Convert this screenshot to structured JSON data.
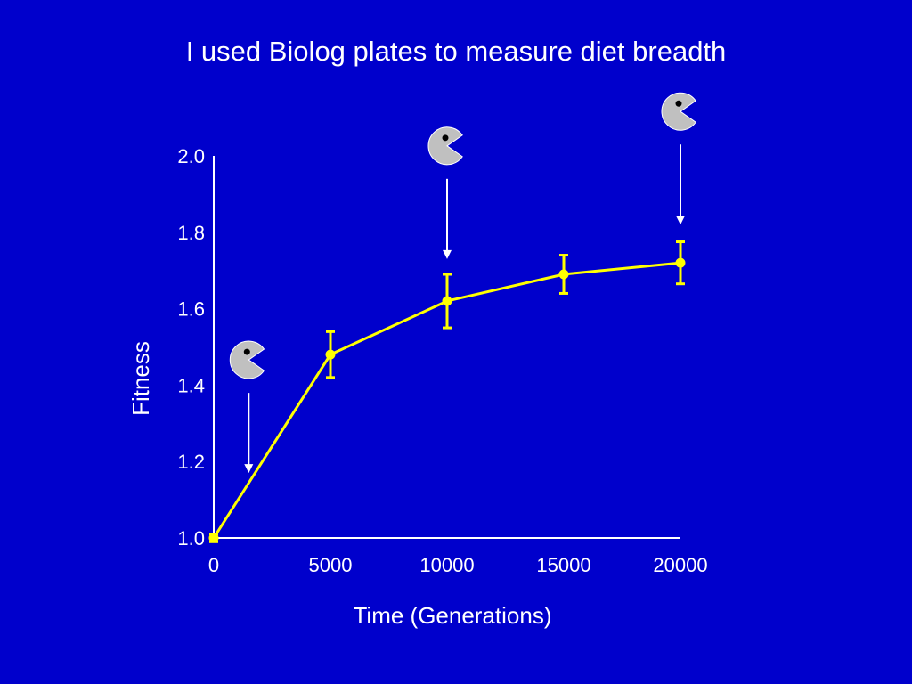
{
  "slide": {
    "title": "I used Biolog plates to measure diet breadth"
  },
  "colors": {
    "background": "#0000cc",
    "axis": "#ffffff",
    "series": "#ffff00",
    "annotation_arrow": "#ffffff",
    "pacman_fill": "#c0c0c0",
    "pacman_eye": "#000000"
  },
  "icons": {
    "marker_icon": "pacman-icon",
    "arrow_icon": "down-arrow-icon"
  },
  "chart_data": {
    "type": "line",
    "title": "",
    "xlabel": "Time (Generations)",
    "ylabel": "Fitness",
    "xlim": [
      0,
      20000
    ],
    "ylim": [
      1.0,
      2.0
    ],
    "x_ticks": [
      "0",
      "5000",
      "10000",
      "15000",
      "20000"
    ],
    "y_ticks": [
      "1.0",
      "1.2",
      "1.4",
      "1.6",
      "1.8",
      "2.0"
    ],
    "grid": false,
    "legend": "none",
    "series": [
      {
        "x": [
          0,
          5000,
          10000,
          15000,
          20000
        ],
        "values": [
          1.0,
          1.48,
          1.62,
          1.69,
          1.72
        ],
        "error": [
          0.01,
          0.06,
          0.07,
          0.05,
          0.055
        ]
      }
    ],
    "annotations": [
      {
        "x": 1500,
        "y": 1.17
      },
      {
        "x": 10000,
        "y": 1.73
      },
      {
        "x": 20000,
        "y": 1.82
      }
    ]
  }
}
